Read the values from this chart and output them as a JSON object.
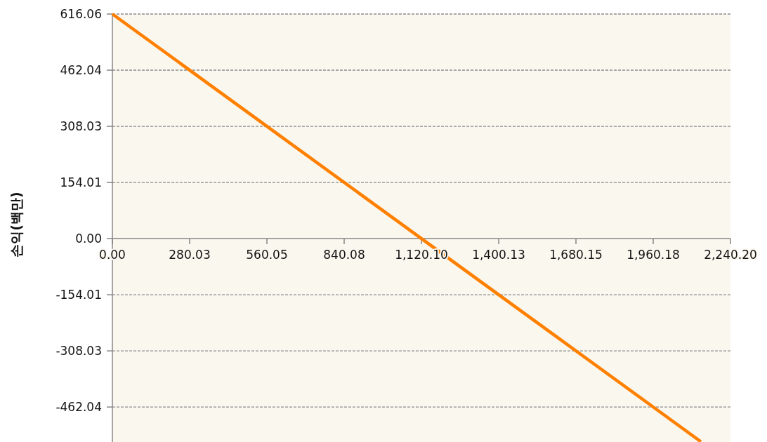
{
  "chart_data": {
    "type": "line",
    "ylabel": "손익(백만)",
    "x": [
      0,
      2133
    ],
    "series": [
      {
        "color": "#ff8000",
        "values": [
          616.06,
          -557
        ]
      }
    ],
    "xlim": [
      0,
      2240.2
    ],
    "ylim": [
      -558,
      616.06
    ],
    "xticks": [
      {
        "value": 0,
        "label": "0.00"
      },
      {
        "value": 280.03,
        "label": "280.03"
      },
      {
        "value": 560.05,
        "label": "560.05"
      },
      {
        "value": 840.08,
        "label": "840.08"
      },
      {
        "value": 1120.1,
        "label": "1,120.10"
      },
      {
        "value": 1400.13,
        "label": "1,400.13"
      },
      {
        "value": 1680.15,
        "label": "1,680.15"
      },
      {
        "value": 1960.18,
        "label": "1,960.18"
      },
      {
        "value": 2240.2,
        "label": "2,240.20"
      }
    ],
    "yticks": [
      {
        "value": 616.06,
        "label": "616.06"
      },
      {
        "value": 462.04,
        "label": "462.04"
      },
      {
        "value": 308.03,
        "label": "308.03"
      },
      {
        "value": 154.01,
        "label": "154.01"
      },
      {
        "value": 0,
        "label": "0.00"
      },
      {
        "value": -154.01,
        "label": "-154.01"
      },
      {
        "value": -308.03,
        "label": "-308.03"
      },
      {
        "value": -462.04,
        "label": "-462.04"
      }
    ],
    "grid": "y"
  }
}
